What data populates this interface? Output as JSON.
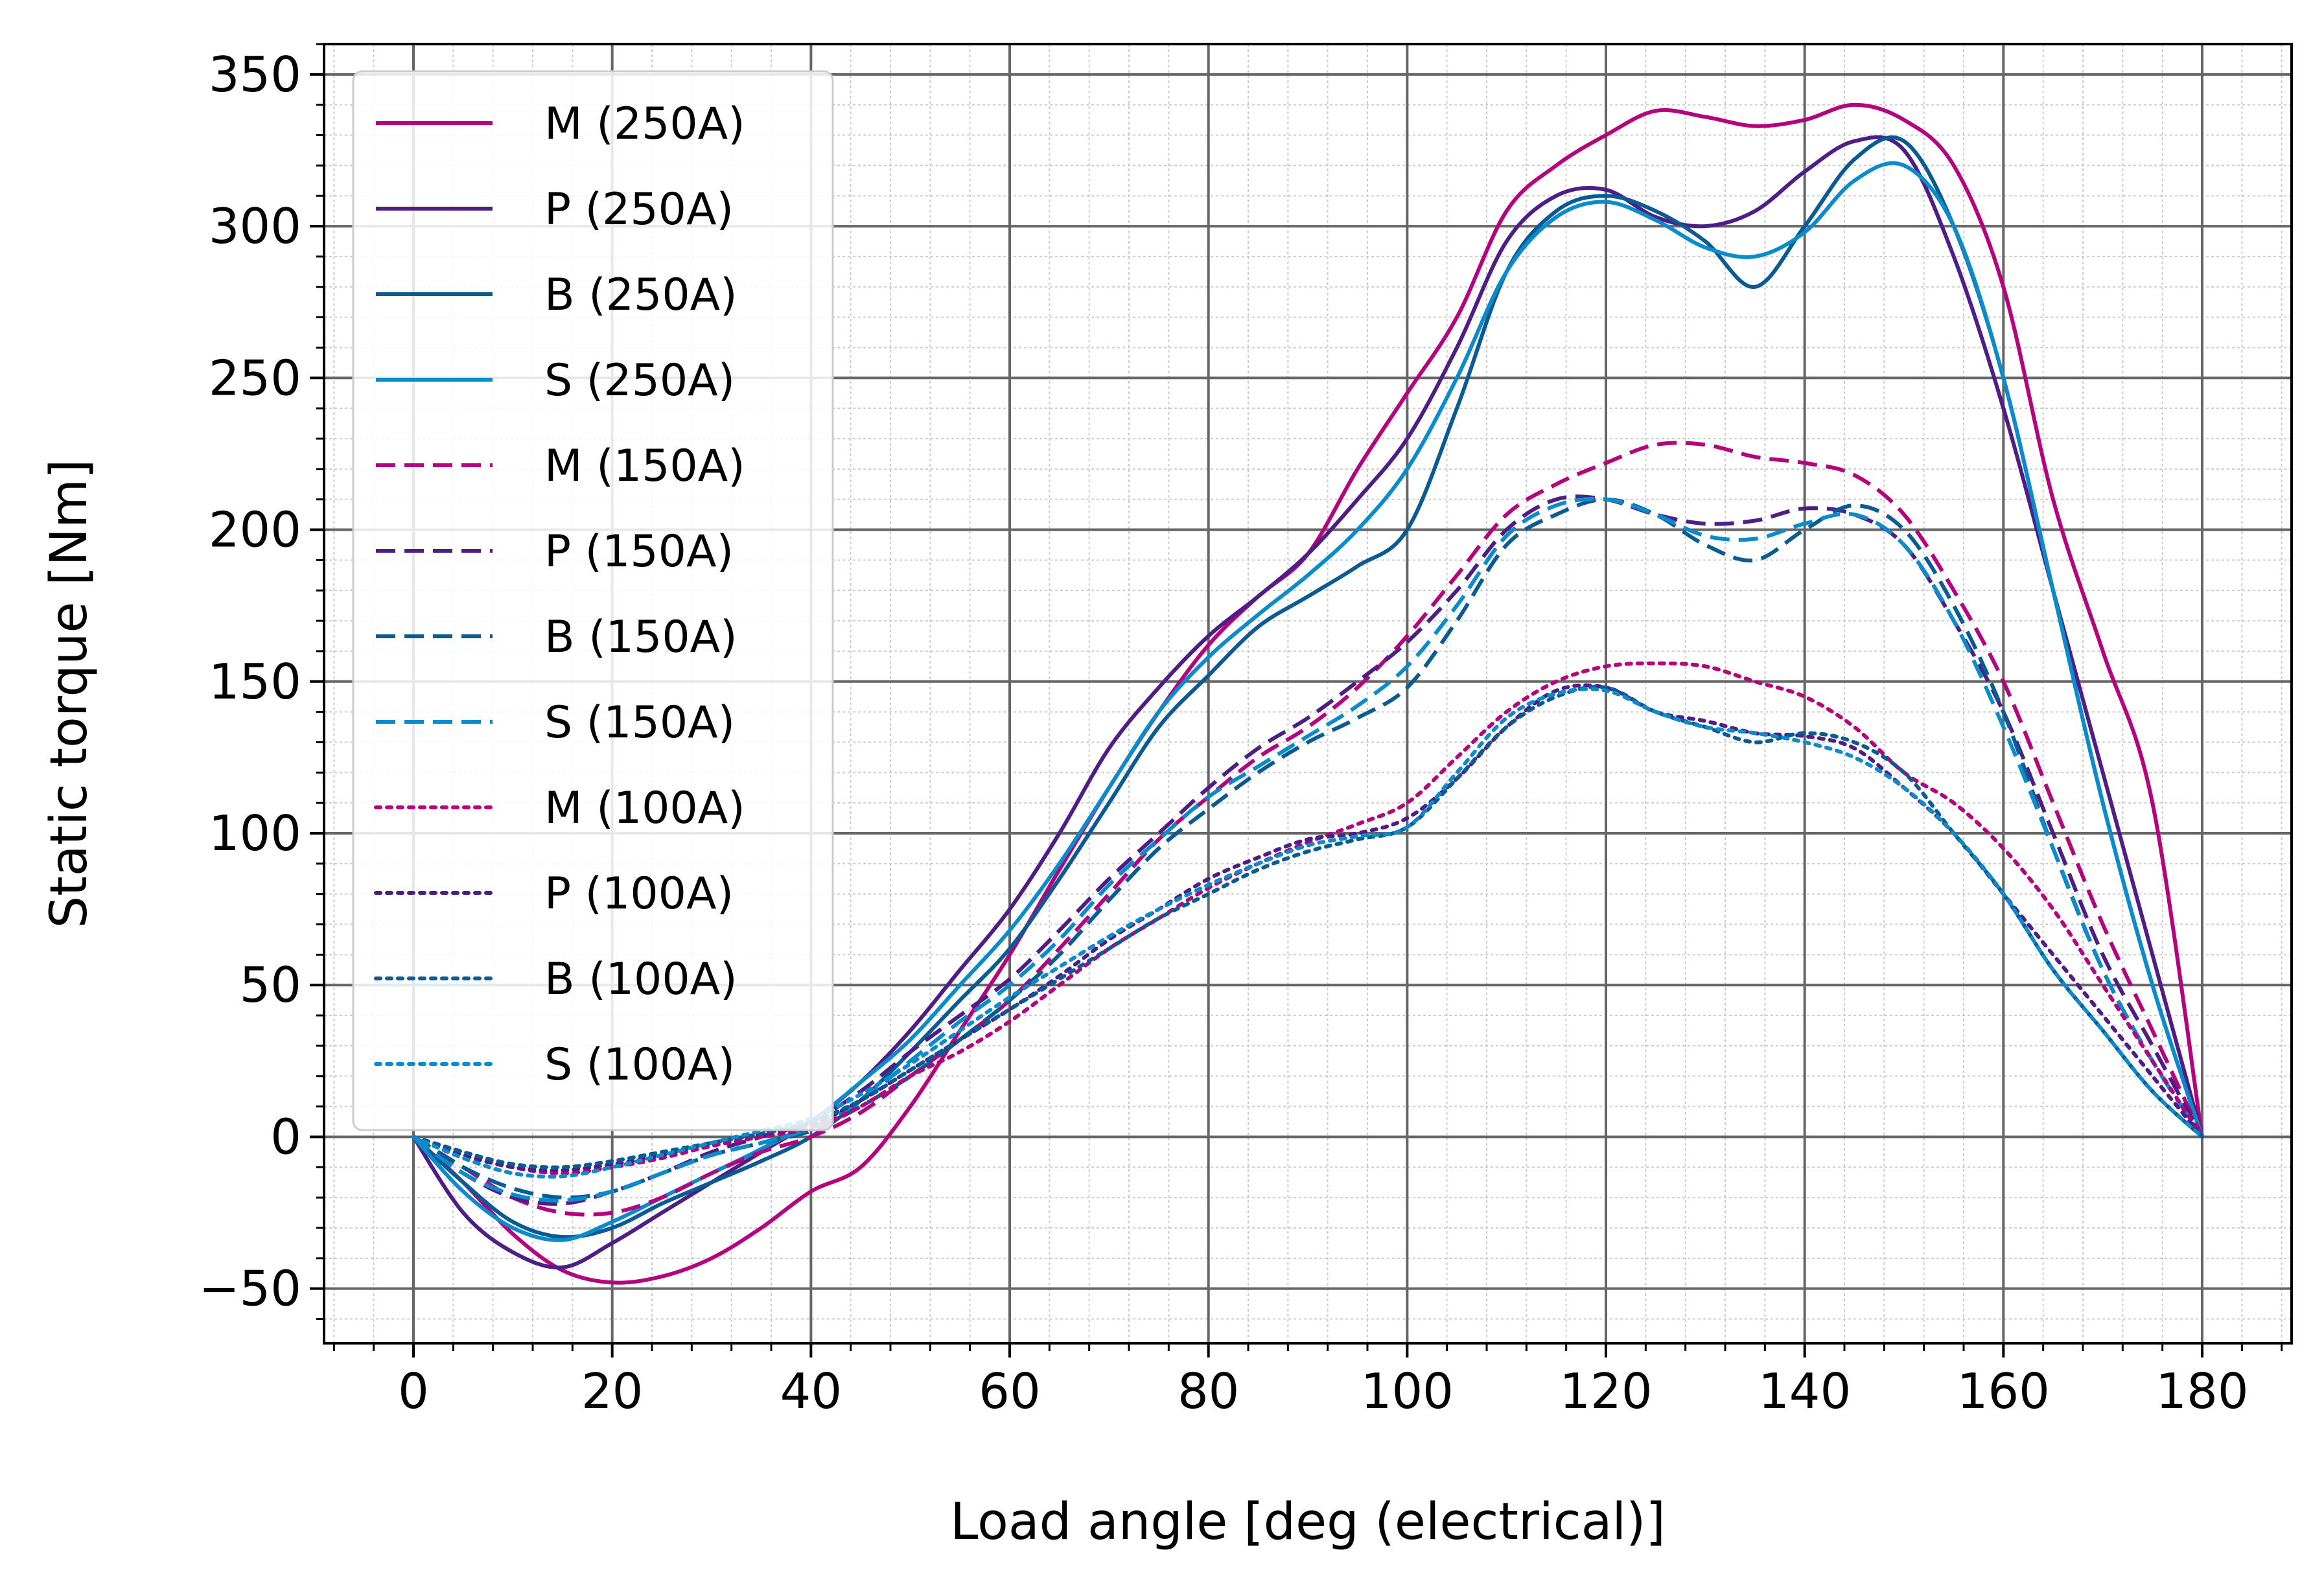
{
  "chart_data": {
    "type": "line",
    "xlabel": "Load angle [deg (electrical)]",
    "ylabel": "Static torque [Nm]",
    "xlim": [
      -9,
      189
    ],
    "ylim": [
      -68,
      360
    ],
    "x_ticks": [
      0,
      20,
      40,
      60,
      80,
      100,
      120,
      140,
      160,
      180
    ],
    "y_ticks": [
      -50,
      0,
      50,
      100,
      150,
      200,
      250,
      300,
      350
    ],
    "x_tick_labels": [
      "0",
      "20",
      "40",
      "60",
      "80",
      "100",
      "120",
      "140",
      "160",
      "180"
    ],
    "y_tick_labels": [
      "−50",
      "0",
      "50",
      "100",
      "150",
      "200",
      "250",
      "300",
      "350"
    ],
    "grid": "major and minor",
    "legend_position": "upper-left",
    "colors": {
      "M": "#b5037e",
      "P": "#4e1d86",
      "B": "#0a5a94",
      "S": "#0a8ccc",
      "grid_major": "#666666",
      "grid_minor": "#cccccc"
    },
    "series": [
      {
        "name": "M (250A)",
        "group": "M",
        "style": "solid",
        "x": [
          0,
          5,
          10,
          15,
          20,
          25,
          30,
          35,
          40,
          45,
          50,
          55,
          60,
          65,
          70,
          75,
          80,
          85,
          90,
          95,
          100,
          105,
          110,
          115,
          120,
          125,
          130,
          135,
          140,
          145,
          150,
          155,
          160,
          165,
          170,
          175,
          180
        ],
        "y": [
          0,
          -15,
          -32,
          -44,
          -48,
          -46,
          -40,
          -30,
          -18,
          -10,
          10,
          35,
          60,
          88,
          115,
          140,
          162,
          178,
          192,
          220,
          245,
          270,
          305,
          320,
          330,
          338,
          336,
          333,
          335,
          340,
          335,
          320,
          280,
          210,
          160,
          110,
          0
        ]
      },
      {
        "name": "P (250A)",
        "group": "P",
        "style": "solid",
        "x": [
          0,
          5,
          10,
          15,
          20,
          25,
          30,
          35,
          40,
          45,
          50,
          55,
          60,
          65,
          70,
          75,
          80,
          85,
          90,
          95,
          100,
          105,
          110,
          115,
          120,
          125,
          130,
          135,
          140,
          145,
          150,
          155,
          160,
          165,
          170,
          175,
          180
        ],
        "y": [
          0,
          -25,
          -38,
          -43,
          -35,
          -25,
          -15,
          -5,
          5,
          18,
          35,
          55,
          75,
          100,
          128,
          148,
          165,
          178,
          192,
          210,
          230,
          260,
          295,
          310,
          312,
          303,
          300,
          305,
          318,
          328,
          325,
          290,
          240,
          180,
          120,
          60,
          0
        ]
      },
      {
        "name": "B (250A)",
        "group": "B",
        "style": "solid",
        "x": [
          0,
          5,
          10,
          15,
          20,
          25,
          30,
          35,
          40,
          45,
          50,
          55,
          60,
          65,
          70,
          75,
          80,
          85,
          90,
          95,
          100,
          105,
          110,
          115,
          120,
          125,
          130,
          135,
          140,
          145,
          150,
          155,
          160,
          165,
          170,
          175,
          180
        ],
        "y": [
          0,
          -15,
          -28,
          -33,
          -30,
          -22,
          -15,
          -8,
          0,
          12,
          28,
          45,
          62,
          85,
          110,
          135,
          152,
          168,
          178,
          188,
          200,
          240,
          285,
          305,
          310,
          305,
          295,
          280,
          300,
          322,
          328,
          300,
          250,
          180,
          110,
          50,
          0
        ]
      },
      {
        "name": "S (250A)",
        "group": "S",
        "style": "solid",
        "x": [
          0,
          5,
          10,
          15,
          20,
          25,
          30,
          35,
          40,
          45,
          50,
          55,
          60,
          65,
          70,
          75,
          80,
          85,
          90,
          95,
          100,
          105,
          110,
          115,
          120,
          125,
          130,
          135,
          140,
          145,
          150,
          155,
          160,
          165,
          170,
          175,
          180
        ],
        "y": [
          0,
          -18,
          -30,
          -34,
          -28,
          -20,
          -12,
          -4,
          5,
          18,
          32,
          50,
          68,
          90,
          115,
          140,
          158,
          172,
          185,
          200,
          220,
          250,
          285,
          303,
          308,
          302,
          293,
          290,
          298,
          315,
          320,
          300,
          250,
          180,
          110,
          50,
          0
        ]
      },
      {
        "name": "M (150A)",
        "group": "M",
        "style": "dashed",
        "x": [
          0,
          5,
          10,
          15,
          20,
          25,
          30,
          35,
          40,
          45,
          50,
          55,
          60,
          65,
          70,
          75,
          80,
          85,
          90,
          95,
          100,
          105,
          110,
          115,
          120,
          125,
          130,
          135,
          140,
          145,
          150,
          155,
          160,
          165,
          170,
          175,
          180
        ],
        "y": [
          0,
          -10,
          -20,
          -25,
          -25,
          -20,
          -12,
          -5,
          0,
          8,
          20,
          32,
          45,
          62,
          80,
          98,
          112,
          125,
          135,
          148,
          165,
          185,
          205,
          215,
          222,
          228,
          228,
          224,
          222,
          218,
          205,
          180,
          150,
          110,
          70,
          35,
          0
        ]
      },
      {
        "name": "P (150A)",
        "group": "P",
        "style": "dashed",
        "x": [
          0,
          5,
          10,
          15,
          20,
          25,
          30,
          35,
          40,
          45,
          50,
          55,
          60,
          65,
          70,
          75,
          80,
          85,
          90,
          95,
          100,
          105,
          110,
          115,
          120,
          125,
          130,
          135,
          140,
          145,
          150,
          155,
          160,
          165,
          170,
          175,
          180
        ],
        "y": [
          0,
          -12,
          -20,
          -22,
          -18,
          -12,
          -5,
          0,
          5,
          15,
          28,
          40,
          52,
          68,
          85,
          100,
          115,
          128,
          138,
          150,
          163,
          180,
          200,
          210,
          210,
          205,
          202,
          203,
          207,
          205,
          195,
          170,
          140,
          100,
          60,
          30,
          0
        ]
      },
      {
        "name": "B (150A)",
        "group": "B",
        "style": "dashed",
        "x": [
          0,
          5,
          10,
          15,
          20,
          25,
          30,
          35,
          40,
          45,
          50,
          55,
          60,
          65,
          70,
          75,
          80,
          85,
          90,
          95,
          100,
          105,
          110,
          115,
          120,
          125,
          130,
          135,
          140,
          145,
          150,
          155,
          160,
          165,
          170,
          175,
          180
        ],
        "y": [
          0,
          -10,
          -17,
          -20,
          -18,
          -12,
          -6,
          -2,
          2,
          10,
          20,
          32,
          45,
          60,
          78,
          95,
          108,
          120,
          130,
          138,
          148,
          170,
          195,
          205,
          210,
          205,
          195,
          190,
          200,
          208,
          200,
          175,
          140,
          95,
          55,
          25,
          0
        ]
      },
      {
        "name": "S (150A)",
        "group": "S",
        "style": "dashed",
        "x": [
          0,
          5,
          10,
          15,
          20,
          25,
          30,
          35,
          40,
          45,
          50,
          55,
          60,
          65,
          70,
          75,
          80,
          85,
          90,
          95,
          100,
          105,
          110,
          115,
          120,
          125,
          130,
          135,
          140,
          145,
          150,
          155,
          160,
          165,
          170,
          175,
          180
        ],
        "y": [
          0,
          -12,
          -19,
          -21,
          -18,
          -12,
          -6,
          -2,
          3,
          12,
          25,
          38,
          50,
          65,
          83,
          98,
          112,
          122,
          132,
          142,
          155,
          175,
          198,
          208,
          210,
          205,
          198,
          197,
          202,
          205,
          195,
          170,
          135,
          95,
          55,
          25,
          0
        ]
      },
      {
        "name": "M (100A)",
        "group": "M",
        "style": "dotted",
        "x": [
          0,
          5,
          10,
          15,
          20,
          25,
          30,
          35,
          40,
          45,
          50,
          55,
          60,
          65,
          70,
          75,
          80,
          85,
          90,
          95,
          100,
          105,
          110,
          115,
          120,
          125,
          130,
          135,
          140,
          145,
          150,
          155,
          160,
          165,
          170,
          175,
          180
        ],
        "y": [
          0,
          -5,
          -10,
          -12,
          -10,
          -7,
          -3,
          0,
          3,
          10,
          20,
          28,
          38,
          50,
          62,
          72,
          82,
          90,
          97,
          103,
          110,
          125,
          140,
          150,
          155,
          156,
          155,
          150,
          145,
          135,
          120,
          110,
          95,
          75,
          50,
          25,
          0
        ]
      },
      {
        "name": "P (100A)",
        "group": "P",
        "style": "dotted",
        "x": [
          0,
          5,
          10,
          15,
          20,
          25,
          30,
          35,
          40,
          45,
          50,
          55,
          60,
          65,
          70,
          75,
          80,
          85,
          90,
          95,
          100,
          105,
          110,
          115,
          120,
          125,
          130,
          135,
          140,
          145,
          150,
          155,
          160,
          165,
          170,
          175,
          180
        ],
        "y": [
          0,
          -6,
          -10,
          -11,
          -9,
          -6,
          -2,
          1,
          4,
          12,
          22,
          32,
          42,
          53,
          65,
          75,
          85,
          92,
          98,
          100,
          105,
          118,
          135,
          147,
          148,
          140,
          137,
          133,
          132,
          128,
          115,
          100,
          80,
          60,
          40,
          20,
          0
        ]
      },
      {
        "name": "B (100A)",
        "group": "B",
        "style": "dotted",
        "x": [
          0,
          5,
          10,
          15,
          20,
          25,
          30,
          35,
          40,
          45,
          50,
          55,
          60,
          65,
          70,
          75,
          80,
          85,
          90,
          95,
          100,
          105,
          110,
          115,
          120,
          125,
          130,
          135,
          140,
          145,
          150,
          155,
          160,
          165,
          170,
          175,
          180
        ],
        "y": [
          0,
          -5,
          -9,
          -10,
          -8,
          -5,
          -2,
          1,
          5,
          12,
          22,
          32,
          42,
          52,
          62,
          72,
          80,
          88,
          94,
          98,
          102,
          118,
          135,
          145,
          148,
          140,
          135,
          130,
          133,
          130,
          120,
          100,
          80,
          55,
          35,
          15,
          0
        ]
      },
      {
        "name": "S (100A)",
        "group": "S",
        "style": "dotted",
        "x": [
          0,
          5,
          10,
          15,
          20,
          25,
          30,
          35,
          40,
          45,
          50,
          55,
          60,
          65,
          70,
          75,
          80,
          85,
          90,
          95,
          100,
          105,
          110,
          115,
          120,
          125,
          130,
          135,
          140,
          145,
          150,
          155,
          160,
          165,
          170,
          175,
          180
        ],
        "y": [
          0,
          -7,
          -12,
          -13,
          -10,
          -6,
          -2,
          2,
          6,
          14,
          24,
          35,
          46,
          56,
          66,
          75,
          83,
          90,
          96,
          99,
          102,
          120,
          138,
          146,
          147,
          140,
          135,
          133,
          130,
          125,
          115,
          100,
          80,
          55,
          35,
          15,
          0
        ]
      }
    ]
  }
}
